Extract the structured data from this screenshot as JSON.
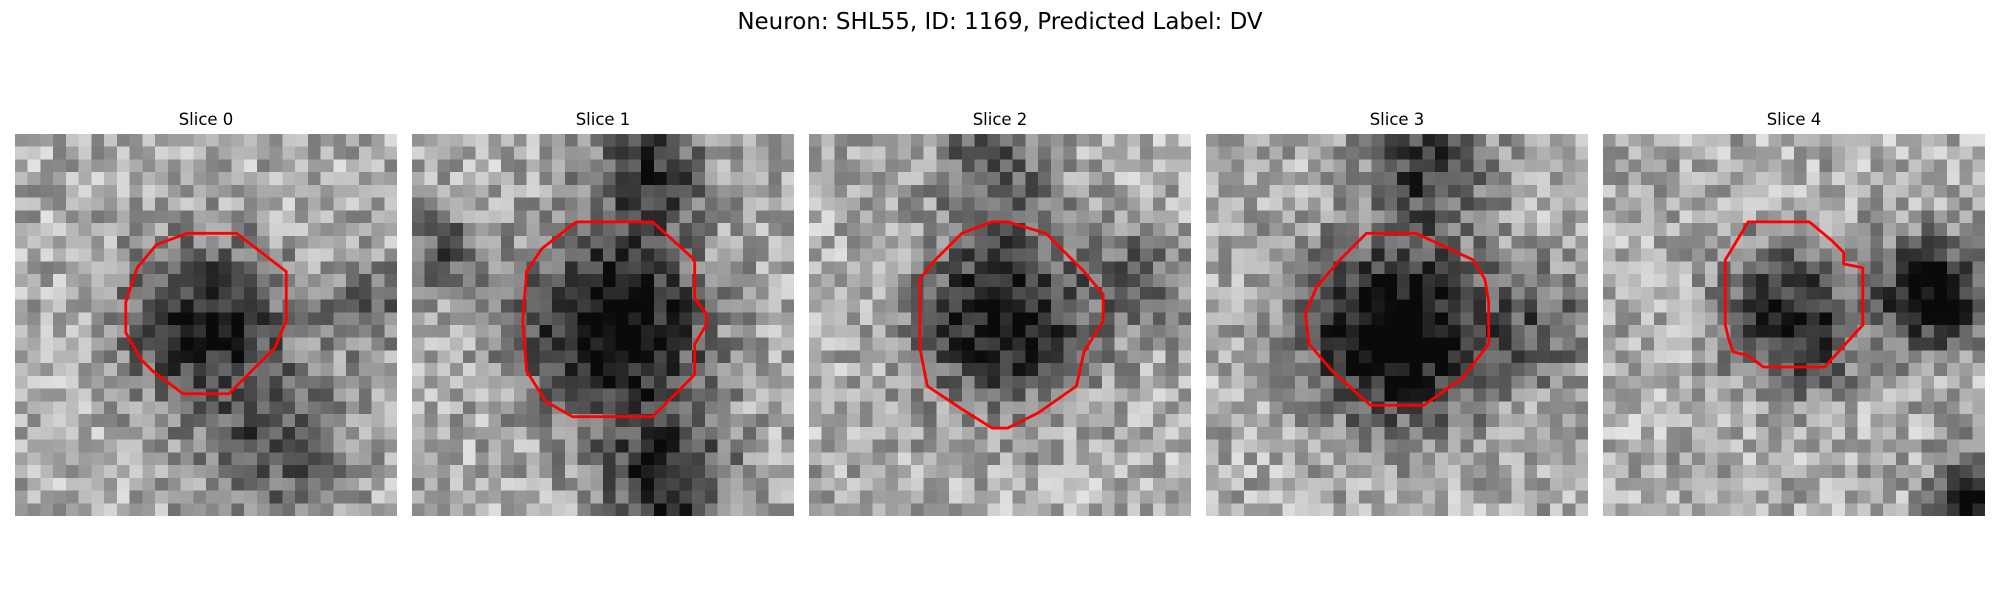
{
  "figure": {
    "title": "Neuron: SHL55, ID: 1169, Predicted Label: DV"
  },
  "contour_color": "#ff0000",
  "slices": [
    {
      "label": "Slice 0",
      "seed": 11,
      "darks": [
        [
          0.5,
          0.5,
          0.2,
          0.6
        ],
        [
          0.68,
          0.82,
          0.18,
          0.35
        ],
        [
          0.94,
          0.45,
          0.12,
          0.25
        ]
      ],
      "contour": [
        [
          0.45,
          0.26
        ],
        [
          0.58,
          0.26
        ],
        [
          0.71,
          0.36
        ],
        [
          0.71,
          0.49
        ],
        [
          0.68,
          0.56
        ],
        [
          0.56,
          0.68
        ],
        [
          0.44,
          0.68
        ],
        [
          0.36,
          0.62
        ],
        [
          0.33,
          0.59
        ],
        [
          0.29,
          0.52
        ],
        [
          0.29,
          0.44
        ],
        [
          0.32,
          0.35
        ],
        [
          0.37,
          0.29
        ]
      ]
    },
    {
      "label": "Slice 1",
      "seed": 23,
      "darks": [
        [
          0.53,
          0.51,
          0.22,
          0.75
        ],
        [
          0.62,
          0.1,
          0.14,
          0.5
        ],
        [
          0.67,
          0.91,
          0.16,
          0.55
        ],
        [
          0.08,
          0.3,
          0.1,
          0.35
        ]
      ],
      "contour": [
        [
          0.43,
          0.23
        ],
        [
          0.63,
          0.23
        ],
        [
          0.74,
          0.33
        ],
        [
          0.74,
          0.43
        ],
        [
          0.77,
          0.47
        ],
        [
          0.77,
          0.5
        ],
        [
          0.74,
          0.55
        ],
        [
          0.74,
          0.63
        ],
        [
          0.63,
          0.74
        ],
        [
          0.42,
          0.74
        ],
        [
          0.35,
          0.7
        ],
        [
          0.3,
          0.62
        ],
        [
          0.29,
          0.49
        ],
        [
          0.3,
          0.36
        ],
        [
          0.34,
          0.3
        ]
      ]
    },
    {
      "label": "Slice 2",
      "seed": 37,
      "darks": [
        [
          0.51,
          0.48,
          0.21,
          0.65
        ],
        [
          0.48,
          0.08,
          0.14,
          0.35
        ],
        [
          0.88,
          0.38,
          0.12,
          0.3
        ]
      ],
      "contour": [
        [
          0.4,
          0.26
        ],
        [
          0.48,
          0.23
        ],
        [
          0.52,
          0.23
        ],
        [
          0.62,
          0.26
        ],
        [
          0.72,
          0.36
        ],
        [
          0.77,
          0.42
        ],
        [
          0.77,
          0.49
        ],
        [
          0.72,
          0.57
        ],
        [
          0.7,
          0.66
        ],
        [
          0.6,
          0.73
        ],
        [
          0.52,
          0.77
        ],
        [
          0.48,
          0.77
        ],
        [
          0.4,
          0.72
        ],
        [
          0.31,
          0.66
        ],
        [
          0.29,
          0.56
        ],
        [
          0.29,
          0.38
        ],
        [
          0.33,
          0.33
        ]
      ]
    },
    {
      "label": "Slice 3",
      "seed": 53,
      "darks": [
        [
          0.5,
          0.52,
          0.22,
          0.8
        ],
        [
          0.58,
          0.08,
          0.15,
          0.45
        ],
        [
          0.88,
          0.5,
          0.14,
          0.3
        ]
      ],
      "contour": [
        [
          0.42,
          0.26
        ],
        [
          0.55,
          0.26
        ],
        [
          0.7,
          0.33
        ],
        [
          0.73,
          0.38
        ],
        [
          0.74,
          0.44
        ],
        [
          0.74,
          0.55
        ],
        [
          0.67,
          0.64
        ],
        [
          0.57,
          0.71
        ],
        [
          0.43,
          0.71
        ],
        [
          0.33,
          0.62
        ],
        [
          0.27,
          0.55
        ],
        [
          0.26,
          0.47
        ],
        [
          0.29,
          0.4
        ],
        [
          0.35,
          0.33
        ]
      ]
    },
    {
      "label": "Slice 4",
      "seed": 71,
      "darks": [
        [
          0.48,
          0.46,
          0.16,
          0.5
        ],
        [
          0.86,
          0.42,
          0.13,
          0.75
        ],
        [
          0.97,
          0.95,
          0.1,
          0.7
        ],
        [
          0.55,
          0.58,
          0.12,
          0.2
        ]
      ],
      "contour": [
        [
          0.38,
          0.23
        ],
        [
          0.54,
          0.23
        ],
        [
          0.6,
          0.28
        ],
        [
          0.63,
          0.31
        ],
        [
          0.63,
          0.34
        ],
        [
          0.68,
          0.35
        ],
        [
          0.68,
          0.4
        ],
        [
          0.68,
          0.5
        ],
        [
          0.58,
          0.61
        ],
        [
          0.42,
          0.61
        ],
        [
          0.38,
          0.58
        ],
        [
          0.34,
          0.57
        ],
        [
          0.33,
          0.54
        ],
        [
          0.32,
          0.5
        ],
        [
          0.32,
          0.33
        ]
      ]
    }
  ]
}
